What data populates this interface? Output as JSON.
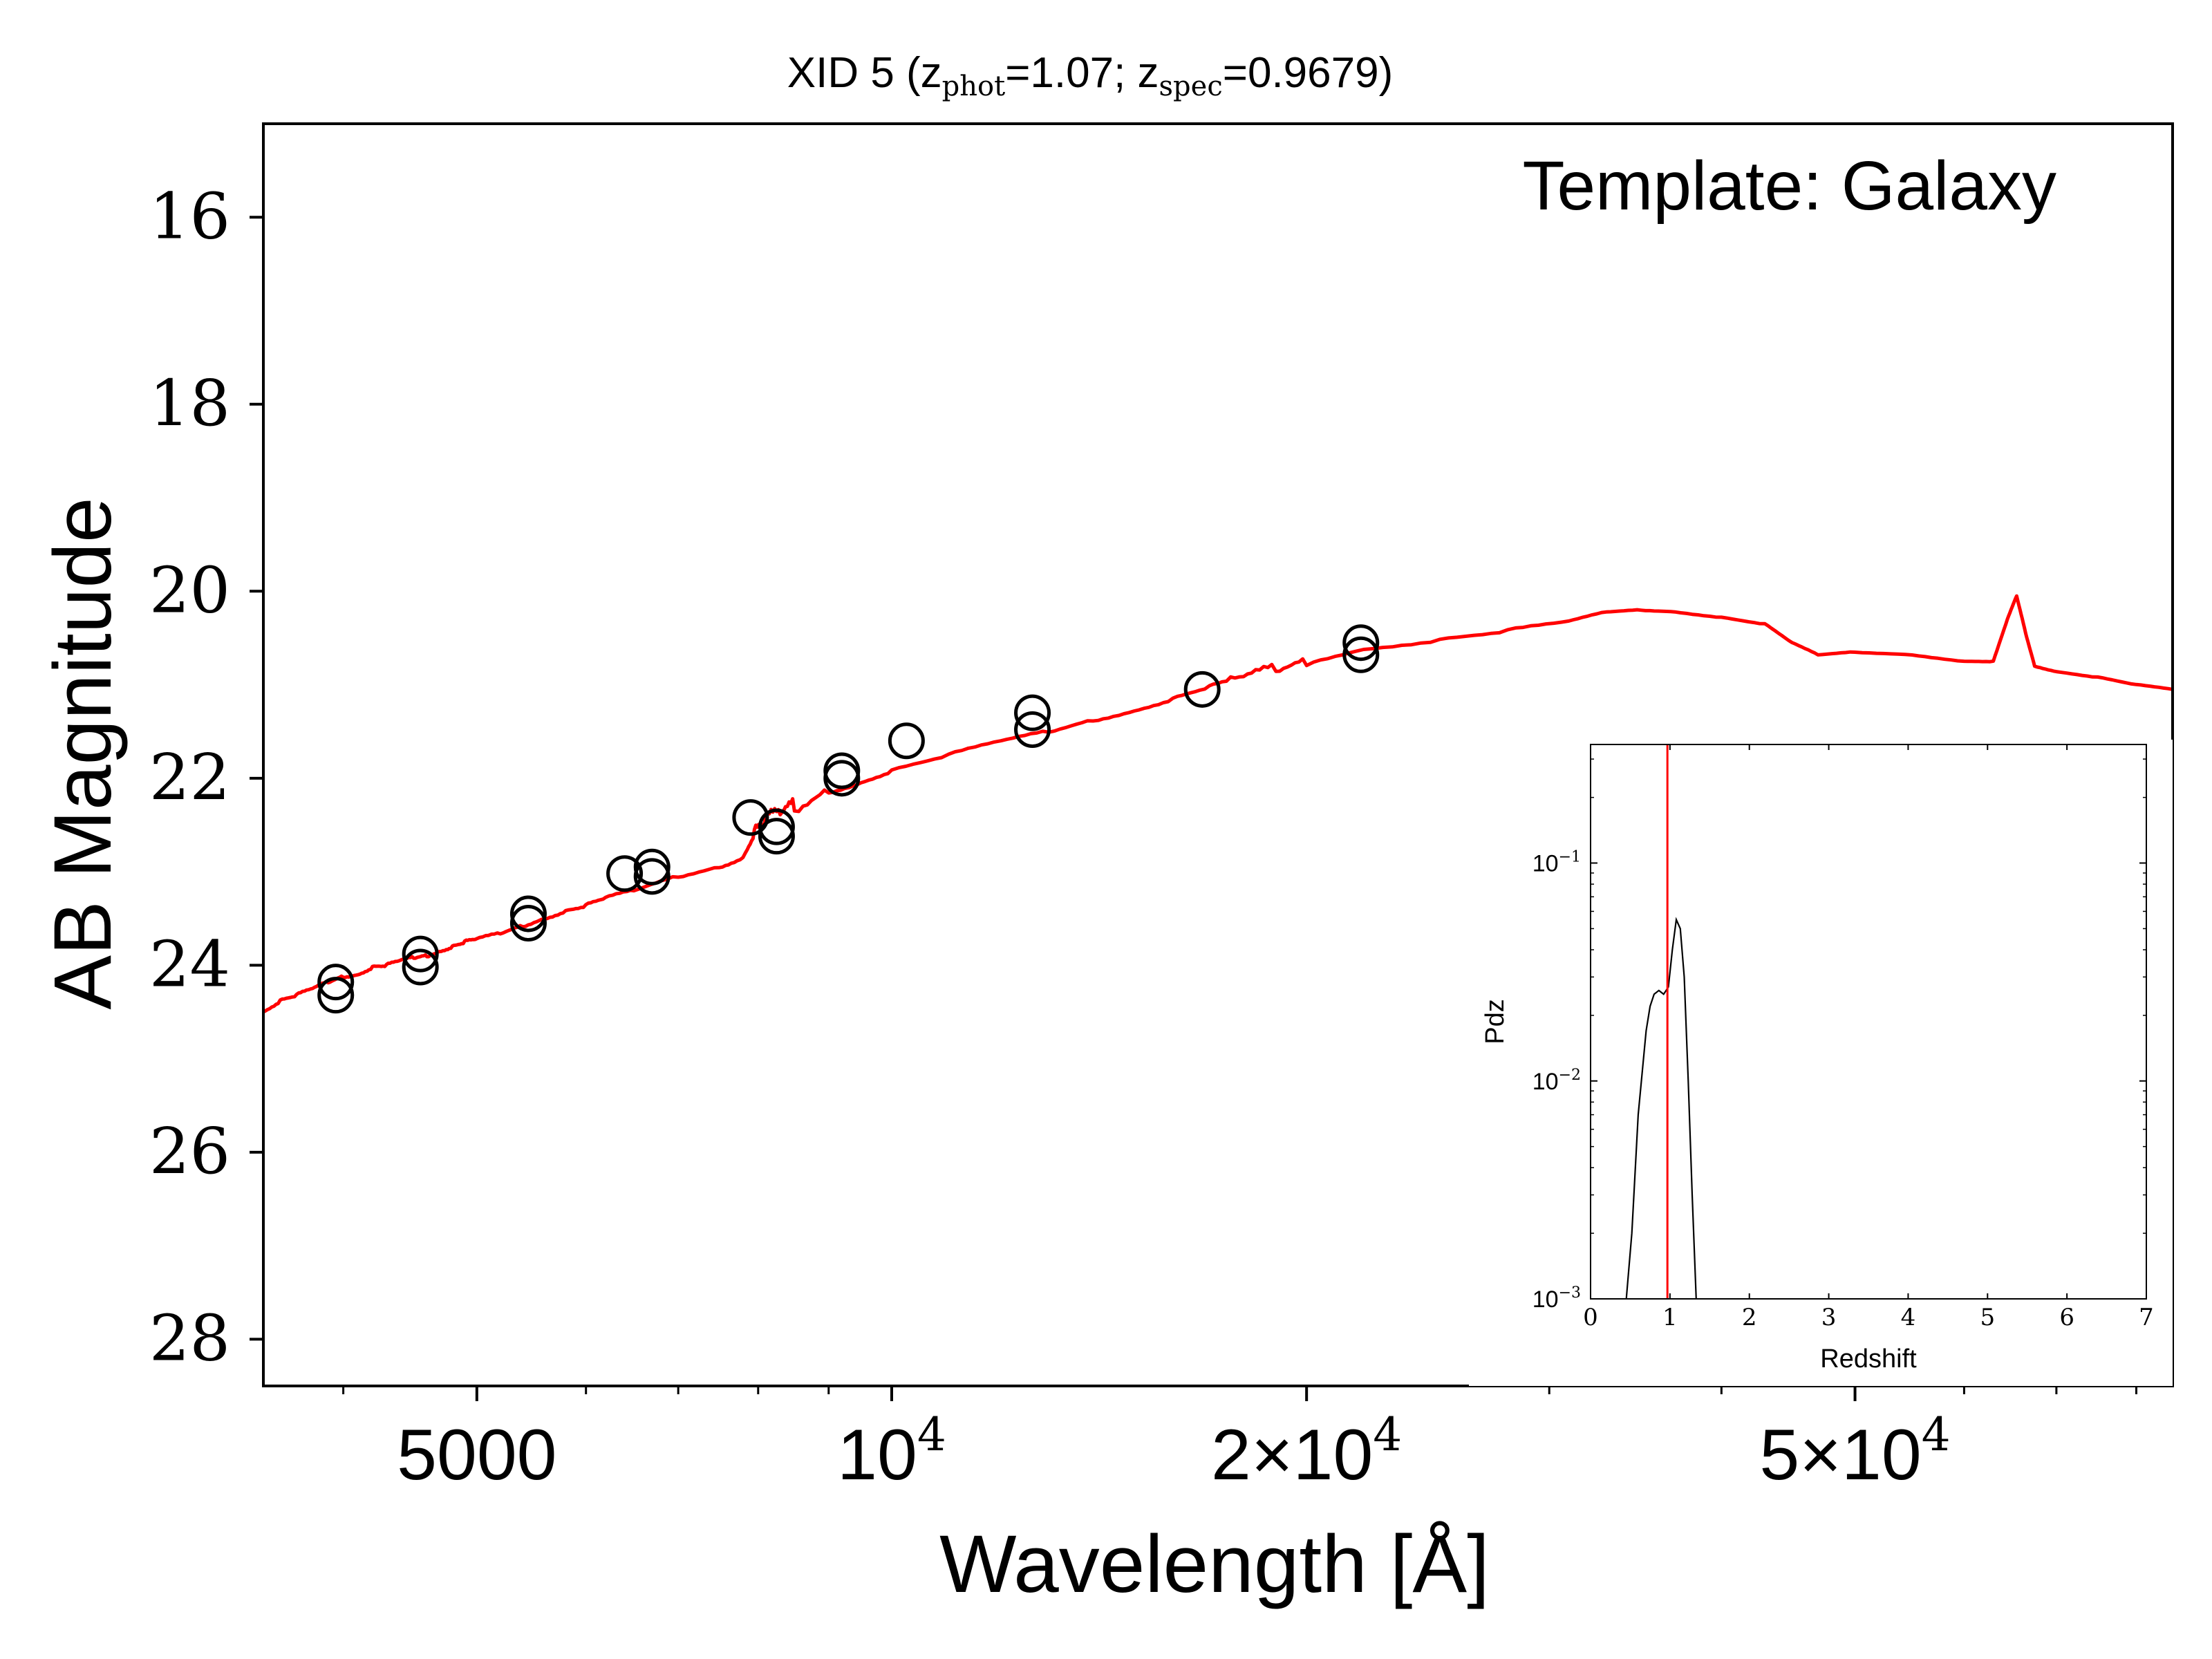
{
  "chart_data": [
    {
      "type": "line",
      "title": {
        "prefix": "XID 5 (z",
        "sub1": "phot",
        "mid": "=1.07; z",
        "sub2": "spec",
        "suffix": "=0.9679)"
      },
      "annotation": "Template: Galaxy",
      "xlabel": "Wavelength [Å]",
      "ylabel": "AB Magnitude",
      "x_scale": "log",
      "xlim": [
        3500,
        85000
      ],
      "ylim": [
        28.5,
        15.0
      ],
      "y_inverted": true,
      "x_ticks": [
        {
          "value": 5000,
          "label": "5000"
        },
        {
          "value": 10000,
          "label": "10",
          "exp": "4"
        },
        {
          "value": 20000,
          "label": "2×10",
          "exp": "4"
        },
        {
          "value": 50000,
          "label": "5×10",
          "exp": "4"
        }
      ],
      "y_ticks": [
        16,
        18,
        20,
        22,
        24,
        26,
        28
      ],
      "grid": false,
      "colors": {
        "model": "#ff0000",
        "photometry": "#000000"
      },
      "series": [
        {
          "style": "line",
          "points": [
            [
              3500,
              24.5
            ],
            [
              3600,
              24.38
            ],
            [
              3700,
              24.32
            ],
            [
              3800,
              24.25
            ],
            [
              3900,
              24.18
            ],
            [
              4000,
              24.12
            ],
            [
              4100,
              24.1
            ],
            [
              4200,
              24.02
            ],
            [
              4300,
              24.0
            ],
            [
              4400,
              23.95
            ],
            [
              4500,
              23.92
            ],
            [
              4600,
              23.9
            ],
            [
              4700,
              23.85
            ],
            [
              4800,
              23.8
            ],
            [
              4900,
              23.75
            ],
            [
              5000,
              23.72
            ],
            [
              5200,
              23.66
            ],
            [
              5400,
              23.58
            ],
            [
              5600,
              23.5
            ],
            [
              5800,
              23.42
            ],
            [
              6000,
              23.36
            ],
            [
              6200,
              23.28
            ],
            [
              6500,
              23.2
            ],
            [
              7000,
              23.05
            ],
            [
              7500,
              22.95
            ],
            [
              7800,
              22.85
            ],
            [
              7950,
              22.6
            ],
            [
              8100,
              22.45
            ],
            [
              8300,
              22.38
            ],
            [
              8500,
              22.3
            ],
            [
              9000,
              22.15
            ],
            [
              9500,
              22.05
            ],
            [
              10000,
              21.92
            ],
            [
              11000,
              21.75
            ],
            [
              12000,
              21.6
            ],
            [
              13000,
              21.5
            ],
            [
              14000,
              21.38
            ],
            [
              15000,
              21.28
            ],
            [
              16000,
              21.15
            ],
            [
              17000,
              21.02
            ],
            [
              18000,
              20.92
            ],
            [
              19000,
              20.83
            ],
            [
              20000,
              20.76
            ],
            [
              22000,
              20.62
            ],
            [
              25000,
              20.52
            ],
            [
              28000,
              20.42
            ],
            [
              31000,
              20.32
            ],
            [
              33000,
              20.22
            ],
            [
              35000,
              20.2
            ],
            [
              37000,
              20.22
            ],
            [
              40000,
              20.28
            ],
            [
              43000,
              20.35
            ],
            [
              45000,
              20.55
            ],
            [
              47000,
              20.68
            ],
            [
              50000,
              20.65
            ],
            [
              55000,
              20.68
            ],
            [
              60000,
              20.75
            ],
            [
              63000,
              20.75
            ],
            [
              64500,
              20.3
            ],
            [
              65500,
              20.05
            ],
            [
              66500,
              20.45
            ],
            [
              67500,
              20.8
            ],
            [
              70000,
              20.86
            ],
            [
              75000,
              20.92
            ],
            [
              80000,
              21.0
            ],
            [
              85000,
              21.05
            ]
          ]
        },
        {
          "style": "markers",
          "points": [
            [
              3950,
              24.18
            ],
            [
              3950,
              24.32
            ],
            [
              4550,
              23.88
            ],
            [
              4550,
              24.02
            ],
            [
              5450,
              23.45
            ],
            [
              5450,
              23.55
            ],
            [
              6400,
              23.02
            ],
            [
              6700,
              22.95
            ],
            [
              6700,
              23.05
            ],
            [
              7900,
              22.42
            ],
            [
              8250,
              22.52
            ],
            [
              8250,
              22.62
            ],
            [
              9200,
              21.92
            ],
            [
              9200,
              22.0
            ],
            [
              10250,
              21.6
            ],
            [
              12650,
              21.3
            ],
            [
              12650,
              21.48
            ],
            [
              16800,
              21.05
            ],
            [
              21900,
              20.55
            ],
            [
              21900,
              20.68
            ]
          ]
        }
      ]
    },
    {
      "type": "line",
      "inset": true,
      "xlabel": "Redshift",
      "ylabel": "Pdz",
      "y_scale": "log",
      "xlim": [
        0,
        7
      ],
      "ylim": [
        0.001,
        0.35
      ],
      "x_ticks": [
        "0",
        "1",
        "2",
        "3",
        "4",
        "5",
        "6",
        "7"
      ],
      "y_ticks": [
        {
          "value": 0.1,
          "base": "10",
          "exp": "−1"
        },
        {
          "value": 0.01,
          "base": "10",
          "exp": "−2"
        },
        {
          "value": 0.001,
          "base": "10",
          "exp": "−3"
        }
      ],
      "vline": 0.9679,
      "colors": {
        "pdz": "#000000",
        "vline": "#ff0000"
      },
      "series": [
        {
          "points": [
            [
              0.45,
              0.001
            ],
            [
              0.52,
              0.002
            ],
            [
              0.6,
              0.007
            ],
            [
              0.7,
              0.017
            ],
            [
              0.75,
              0.022
            ],
            [
              0.8,
              0.025
            ],
            [
              0.86,
              0.026
            ],
            [
              0.92,
              0.025
            ],
            [
              0.98,
              0.027
            ],
            [
              1.03,
              0.04
            ],
            [
              1.08,
              0.055
            ],
            [
              1.13,
              0.05
            ],
            [
              1.18,
              0.03
            ],
            [
              1.23,
              0.01
            ],
            [
              1.28,
              0.003
            ],
            [
              1.33,
              0.001
            ]
          ]
        }
      ]
    }
  ]
}
